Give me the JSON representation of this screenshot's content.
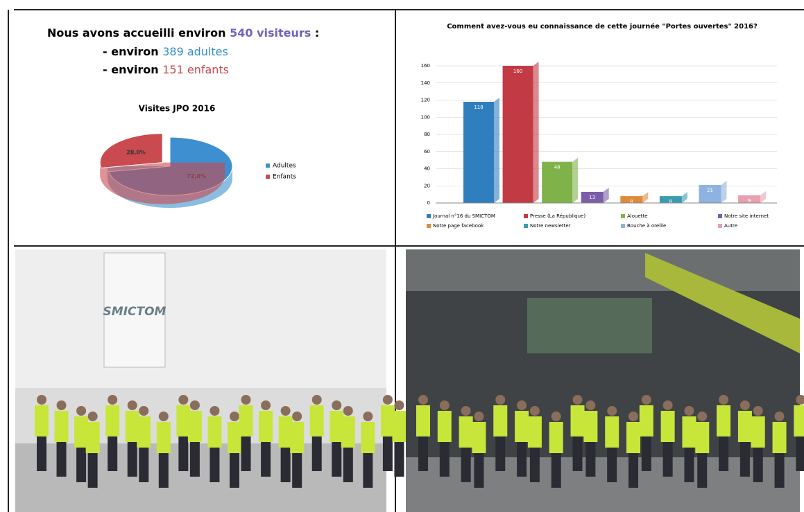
{
  "summary": {
    "line1": {
      "text": "Nous avons accueilli environ",
      "highlight": "540 visiteurs",
      "end": ":"
    },
    "line2": {
      "text": "- environ",
      "highlight": "389 adultes"
    },
    "line3": {
      "text": "- environ",
      "highlight": "151 enfants"
    }
  },
  "chart_data": [
    {
      "type": "pie",
      "title": "Visites JPO 2016",
      "categories": [
        "Adultes",
        "Enfants"
      ],
      "values": [
        72,
        28
      ],
      "value_labels": [
        "72,0%",
        "28,0%"
      ],
      "colors": [
        "#3d8fcf",
        "#c94a4f"
      ],
      "legend": "right"
    },
    {
      "type": "bar",
      "title": "Comment avez-vous eu connaissance de cette journée \"Portes ouvertes\" 2016?",
      "categories": [
        "Journal n°16 du SMICTOM",
        "Presse (La République)",
        "Alouette",
        "Notre site internet",
        "Notre page facebook",
        "Notre newsletter",
        "Bouche à oreille",
        "Autre"
      ],
      "values": [
        118,
        160,
        48,
        13,
        8,
        8,
        21,
        9
      ],
      "colors": [
        "#2f7fbf",
        "#c23b44",
        "#7fb34a",
        "#7b5ea8",
        "#e08a3c",
        "#3a9cb0",
        "#8fb3e0",
        "#e8a0b0"
      ],
      "ylim": [
        0,
        160
      ],
      "yticks": [
        0,
        20,
        40,
        60,
        80,
        100,
        120,
        140,
        160
      ],
      "grid": true,
      "legend": "bottom"
    }
  ],
  "photos": [
    {
      "sign": "SMICTOM"
    }
  ]
}
